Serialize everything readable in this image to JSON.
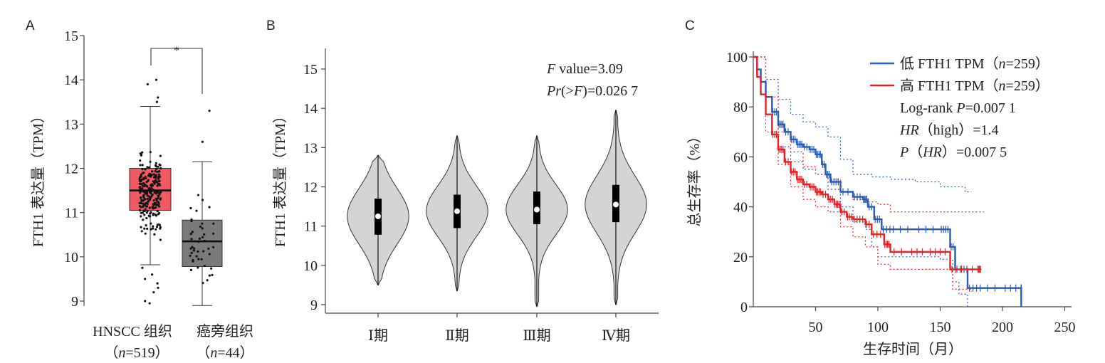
{
  "colors": {
    "box_tumor": "#ef5a63",
    "box_normal": "#7a7a7a",
    "violin_fill": "#d4d4d4",
    "low_curve": "#2a5ab3",
    "high_curve": "#e32228",
    "sig_star": "#e32228"
  },
  "chart_data": [
    {
      "panel_label": "A",
      "type": "box",
      "ylabel": "FTH1 表达量（TPM）",
      "ylim": [
        8.8,
        15.2
      ],
      "yticks": [
        "9",
        "10",
        "11",
        "12",
        "13",
        "14",
        "15"
      ],
      "significance": "*",
      "groups": [
        {
          "label": "HNSCC 组织",
          "n_label": "（n=519）",
          "n_italic": "n",
          "n_value": "=519）",
          "n_prefix": "（",
          "q1": 11.05,
          "median": 11.5,
          "q3": 12.0,
          "whisker_low": 9.82,
          "whisker_high": 13.4,
          "outliers": [
            14.0,
            13.9,
            13.6,
            13.5,
            9.6,
            9.4,
            9.3,
            9.2,
            9.0,
            8.95,
            9.75,
            9.5
          ]
        },
        {
          "label": "癌旁组织",
          "n_label": "（n=44）",
          "n_italic": "n",
          "n_value": "=44）",
          "n_prefix": "（",
          "q1": 9.78,
          "median": 10.35,
          "q3": 10.83,
          "whisker_low": 8.9,
          "whisker_high": 12.15,
          "outliers": [
            13.3,
            12.6
          ]
        }
      ]
    },
    {
      "panel_label": "B",
      "type": "violin",
      "ylabel": "FTH1 表达量（TPM）",
      "ylim": [
        8.85,
        15.6
      ],
      "yticks": [
        "9",
        "10",
        "11",
        "12",
        "13",
        "14",
        "15"
      ],
      "annotation_f_italic": "F",
      "annotation_f_rest": " value=3.09",
      "annotation_pr_italic": "Pr",
      "annotation_pr_mid": "(>",
      "annotation_pr_italic2": "F",
      "annotation_pr_rest": ")=0.026 7",
      "categories": [
        "Ⅰ期",
        "Ⅱ期",
        "Ⅲ期",
        "Ⅳ期"
      ],
      "stats": [
        {
          "min": 9.5,
          "q1": 10.78,
          "median": 11.25,
          "q3": 11.7,
          "max": 12.8
        },
        {
          "min": 9.35,
          "q1": 10.95,
          "median": 11.38,
          "q3": 11.8,
          "max": 13.3
        },
        {
          "min": 8.95,
          "q1": 11.05,
          "median": 11.42,
          "q3": 11.88,
          "max": 13.3
        },
        {
          "min": 9.0,
          "q1": 11.1,
          "median": 11.55,
          "q3": 12.05,
          "max": 13.95
        }
      ]
    },
    {
      "panel_label": "C",
      "type": "line",
      "xlabel": "生存时间（月）",
      "ylabel": "总生存率（%）",
      "xlim": [
        0,
        250
      ],
      "ylim": [
        0,
        100
      ],
      "xticks": [
        "50",
        "100",
        "150",
        "200",
        "250"
      ],
      "yticks": [
        "0",
        "20",
        "40",
        "60",
        "80",
        "100"
      ],
      "legend_position": "top-right",
      "series": [
        {
          "name": "低 FTH1 TPM（n=259）",
          "legend_prefix": "低 FTH1 TPM（",
          "legend_italic": "n",
          "legend_rest": "=259）",
          "color_key": "low_curve",
          "x": [
            0,
            3,
            6,
            10,
            15,
            20,
            25,
            30,
            35,
            40,
            45,
            50,
            55,
            58,
            62,
            70,
            80,
            88,
            92,
            97,
            103,
            115,
            130,
            150,
            158,
            162,
            172,
            185,
            200,
            215,
            215
          ],
          "y": [
            100,
            95,
            90,
            84,
            78,
            73,
            70,
            67,
            65,
            64,
            63,
            61,
            57,
            53,
            50,
            46,
            44,
            43,
            40,
            35,
            31,
            31,
            31,
            31,
            24,
            15,
            7.5,
            7.5,
            7.5,
            7.5,
            0
          ]
        },
        {
          "name": "高 FTH1 TPM（n=259）",
          "legend_prefix": "高 FTH1 TPM（",
          "legend_italic": "n",
          "legend_rest": "=259）",
          "color_key": "high_curve",
          "x": [
            0,
            3,
            6,
            10,
            15,
            20,
            25,
            30,
            35,
            40,
            45,
            50,
            55,
            60,
            65,
            70,
            75,
            80,
            90,
            95,
            105,
            110,
            125,
            140,
            158,
            165,
            180,
            183
          ],
          "y": [
            100,
            92,
            85,
            77,
            69,
            63,
            58,
            54,
            51,
            49,
            48,
            46,
            45,
            43,
            41,
            38,
            36,
            35,
            33,
            29,
            25,
            22,
            22,
            22,
            15,
            15,
            15,
            15
          ]
        }
      ],
      "ci_low_upper": {
        "x": [
          0,
          10,
          20,
          30,
          40,
          50,
          60,
          70,
          80,
          95,
          110,
          130,
          150,
          170,
          175
        ],
        "y": [
          100,
          91,
          83,
          77,
          74,
          72,
          68,
          59,
          53,
          52,
          51,
          50,
          48,
          46,
          46
        ]
      },
      "ci_low_lower": {
        "x": [
          0,
          10,
          20,
          30,
          40,
          50,
          60,
          70,
          80,
          90,
          95,
          100,
          130,
          150,
          160,
          165,
          172
        ],
        "y": [
          100,
          77,
          64,
          58,
          55,
          53,
          47,
          40,
          34,
          31,
          24,
          20,
          20,
          19,
          10,
          5,
          0
        ]
      },
      "ci_high_upper": {
        "x": [
          0,
          10,
          20,
          30,
          40,
          50,
          60,
          70,
          80,
          90,
          100,
          110,
          130,
          160,
          185
        ],
        "y": [
          100,
          84,
          70,
          62,
          56,
          53,
          51,
          46,
          43,
          42,
          41,
          38,
          38,
          38,
          38
        ]
      },
      "ci_high_lower": {
        "x": [
          0,
          10,
          20,
          30,
          40,
          50,
          60,
          70,
          80,
          90,
          100,
          110,
          130,
          160,
          175
        ],
        "y": [
          100,
          70,
          57,
          48,
          43,
          40,
          38,
          32,
          28,
          24,
          17,
          15,
          15,
          7,
          6
        ]
      },
      "stats_text": {
        "logrank_prefix": "Log-rank ",
        "logrank_italic": "P",
        "logrank_value": "=0.007 1",
        "hr_italic": "HR",
        "hr_rest": "（high）=1.4",
        "p_italic": "P",
        "p_mid": "（",
        "p_italic2": "HR",
        "p_rest": "）=0.007 5"
      }
    }
  ]
}
